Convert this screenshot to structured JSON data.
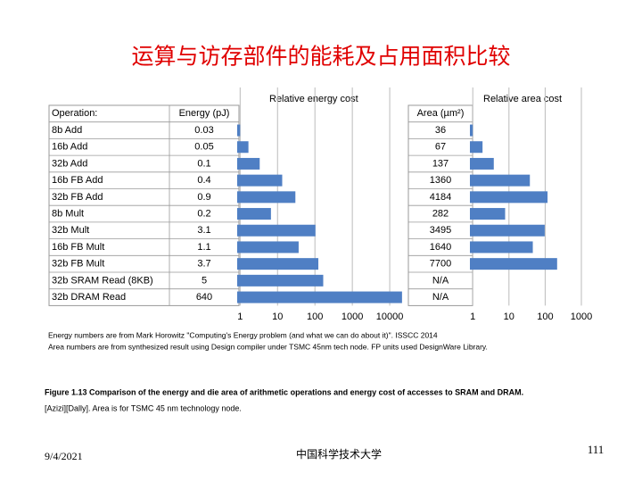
{
  "title": "运算与访存部件的能耗及占用面积比较",
  "table": {
    "headers": [
      "Operation:",
      "Energy (pJ)",
      "Area (µm²)"
    ]
  },
  "chart_data": [
    {
      "type": "bar",
      "title": "Relative energy cost",
      "log_scale": true,
      "color": "#4f7fc4",
      "categories": [
        "8b Add",
        "16b Add",
        "32b Add",
        "16b FB Add",
        "32b FB Add",
        "8b Mult",
        "32b Mult",
        "16b FB Mult",
        "32b FB Mult",
        "32b SRAM Read (8KB)",
        "32b DRAM Read"
      ],
      "values": [
        0.03,
        0.05,
        0.1,
        0.4,
        0.9,
        0.2,
        3.1,
        1.1,
        3.7,
        5,
        640
      ],
      "xlim": [
        0.025,
        1000
      ],
      "xticks": [
        {
          "value": 0.03,
          "label": "1"
        },
        {
          "value": 0.3,
          "label": "10"
        },
        {
          "value": 3,
          "label": "100"
        },
        {
          "value": 30,
          "label": "1000"
        },
        {
          "value": 300,
          "label": "10000"
        }
      ]
    },
    {
      "type": "bar",
      "title": "Relative area cost",
      "log_scale": true,
      "color": "#4f7fc4",
      "values": [
        36,
        67,
        137,
        1360,
        4184,
        282,
        3495,
        1640,
        7700,
        null,
        null
      ],
      "value_labels": [
        "36",
        "67",
        "137",
        "1360",
        "4184",
        "282",
        "3495",
        "1640",
        "7700",
        "N/A",
        "N/A"
      ],
      "xlim": [
        30,
        36000
      ],
      "xticks": [
        {
          "value": 36,
          "label": "1"
        },
        {
          "value": 360,
          "label": "10"
        },
        {
          "value": 3600,
          "label": "100"
        },
        {
          "value": 36000,
          "label": "1000"
        }
      ]
    }
  ],
  "notes": [
    "Energy numbers are from Mark Horowitz \"Computing's Energy problem (and what we can do about it)\". ISSCC 2014",
    "Area numbers are from synthesized result using Design compiler under TSMC 45nm tech node. FP units used DesignWare Library."
  ],
  "caption": [
    "Figure 1.13 Comparison of the energy and die area of arithmetic operations and energy cost of accesses to SRAM and DRAM.",
    "[Azizi][Dally]. Area is for TSMC 45 nm technology node."
  ],
  "footer": {
    "date": "9/4/2021",
    "institution": "中国科学技术大学",
    "page": "111"
  }
}
